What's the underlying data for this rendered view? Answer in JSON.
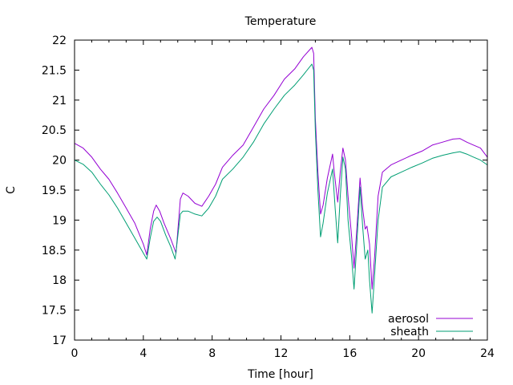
{
  "chart_data": {
    "type": "line",
    "title": "Temperature",
    "xlabel": "Time [hour]",
    "ylabel": "C",
    "xlim": [
      0,
      24
    ],
    "ylim": [
      17,
      22
    ],
    "xticks": [
      0,
      4,
      8,
      12,
      16,
      20,
      24
    ],
    "xtick_labels": [
      "0",
      "4",
      "8",
      "12",
      "16",
      "20",
      "24"
    ],
    "yticks": [
      17,
      17.5,
      18,
      18.5,
      19,
      19.5,
      20,
      20.5,
      21,
      21.5,
      22
    ],
    "ytick_labels": [
      "17",
      "17.5",
      "18",
      "18.5",
      "19",
      "19.5",
      "20",
      "20.5",
      "21",
      "21.5",
      "22"
    ],
    "grid": false,
    "legend_position": "bottom-right",
    "series": [
      {
        "name": "aerosol",
        "color": "#9400d3",
        "points": [
          [
            0,
            20.28
          ],
          [
            0.5,
            20.2
          ],
          [
            1,
            20.05
          ],
          [
            1.5,
            19.85
          ],
          [
            2,
            19.68
          ],
          [
            2.5,
            19.45
          ],
          [
            3,
            19.2
          ],
          [
            3.5,
            18.95
          ],
          [
            4.0,
            18.6
          ],
          [
            4.2,
            18.42
          ],
          [
            4.4,
            18.85
          ],
          [
            4.6,
            19.15
          ],
          [
            4.75,
            19.25
          ],
          [
            4.95,
            19.15
          ],
          [
            5.2,
            18.95
          ],
          [
            5.6,
            18.68
          ],
          [
            5.9,
            18.45
          ],
          [
            6.15,
            19.35
          ],
          [
            6.3,
            19.45
          ],
          [
            6.6,
            19.4
          ],
          [
            7.0,
            19.28
          ],
          [
            7.4,
            19.23
          ],
          [
            7.8,
            19.4
          ],
          [
            8.2,
            19.6
          ],
          [
            8.6,
            19.88
          ],
          [
            9.2,
            20.08
          ],
          [
            9.8,
            20.25
          ],
          [
            10.4,
            20.55
          ],
          [
            11.0,
            20.85
          ],
          [
            11.6,
            21.08
          ],
          [
            12.2,
            21.35
          ],
          [
            12.8,
            21.52
          ],
          [
            13.3,
            21.72
          ],
          [
            13.8,
            21.88
          ],
          [
            13.9,
            21.78
          ],
          [
            14.0,
            20.7
          ],
          [
            14.15,
            19.8
          ],
          [
            14.3,
            19.1
          ],
          [
            14.45,
            19.25
          ],
          [
            14.7,
            19.7
          ],
          [
            15.0,
            20.1
          ],
          [
            15.1,
            19.8
          ],
          [
            15.3,
            19.3
          ],
          [
            15.45,
            19.8
          ],
          [
            15.6,
            20.2
          ],
          [
            15.75,
            20.0
          ],
          [
            15.9,
            19.4
          ],
          [
            16.1,
            18.75
          ],
          [
            16.25,
            18.2
          ],
          [
            16.4,
            18.8
          ],
          [
            16.6,
            19.7
          ],
          [
            16.75,
            19.2
          ],
          [
            16.9,
            18.85
          ],
          [
            17.0,
            18.9
          ],
          [
            17.15,
            18.6
          ],
          [
            17.3,
            17.85
          ],
          [
            17.45,
            18.4
          ],
          [
            17.65,
            19.4
          ],
          [
            17.9,
            19.8
          ],
          [
            18.4,
            19.92
          ],
          [
            19.0,
            20.0
          ],
          [
            19.6,
            20.08
          ],
          [
            20.2,
            20.15
          ],
          [
            20.8,
            20.25
          ],
          [
            21.4,
            20.3
          ],
          [
            22.0,
            20.35
          ],
          [
            22.4,
            20.36
          ],
          [
            22.8,
            20.3
          ],
          [
            23.2,
            20.25
          ],
          [
            23.6,
            20.2
          ],
          [
            24,
            20.05
          ]
        ]
      },
      {
        "name": "sheath",
        "color": "#009e73",
        "points": [
          [
            0,
            20.0
          ],
          [
            0.5,
            19.93
          ],
          [
            1,
            19.8
          ],
          [
            1.5,
            19.6
          ],
          [
            2,
            19.42
          ],
          [
            2.5,
            19.2
          ],
          [
            3,
            18.95
          ],
          [
            3.5,
            18.7
          ],
          [
            4.0,
            18.45
          ],
          [
            4.2,
            18.35
          ],
          [
            4.4,
            18.7
          ],
          [
            4.6,
            18.98
          ],
          [
            4.8,
            19.05
          ],
          [
            5.0,
            18.98
          ],
          [
            5.3,
            18.75
          ],
          [
            5.6,
            18.55
          ],
          [
            5.85,
            18.35
          ],
          [
            6.15,
            19.1
          ],
          [
            6.3,
            19.15
          ],
          [
            6.6,
            19.15
          ],
          [
            7.0,
            19.1
          ],
          [
            7.4,
            19.07
          ],
          [
            7.8,
            19.2
          ],
          [
            8.2,
            19.4
          ],
          [
            8.6,
            19.68
          ],
          [
            9.2,
            19.85
          ],
          [
            9.8,
            20.05
          ],
          [
            10.4,
            20.3
          ],
          [
            11.0,
            20.6
          ],
          [
            11.6,
            20.85
          ],
          [
            12.2,
            21.08
          ],
          [
            12.8,
            21.25
          ],
          [
            13.3,
            21.42
          ],
          [
            13.8,
            21.6
          ],
          [
            13.9,
            21.5
          ],
          [
            14.0,
            20.5
          ],
          [
            14.15,
            19.5
          ],
          [
            14.3,
            18.72
          ],
          [
            14.45,
            18.95
          ],
          [
            14.7,
            19.45
          ],
          [
            15.0,
            19.85
          ],
          [
            15.15,
            19.2
          ],
          [
            15.3,
            18.62
          ],
          [
            15.45,
            19.4
          ],
          [
            15.6,
            20.05
          ],
          [
            15.75,
            19.85
          ],
          [
            15.9,
            19.0
          ],
          [
            16.1,
            18.4
          ],
          [
            16.25,
            17.85
          ],
          [
            16.4,
            18.55
          ],
          [
            16.6,
            19.55
          ],
          [
            16.75,
            18.9
          ],
          [
            16.9,
            18.35
          ],
          [
            17.05,
            18.5
          ],
          [
            17.15,
            18.0
          ],
          [
            17.3,
            17.45
          ],
          [
            17.45,
            18.1
          ],
          [
            17.65,
            19.0
          ],
          [
            17.9,
            19.55
          ],
          [
            18.4,
            19.72
          ],
          [
            19.0,
            19.8
          ],
          [
            19.6,
            19.88
          ],
          [
            20.2,
            19.95
          ],
          [
            20.8,
            20.03
          ],
          [
            21.4,
            20.08
          ],
          [
            22.0,
            20.12
          ],
          [
            22.4,
            20.14
          ],
          [
            22.8,
            20.1
          ],
          [
            23.2,
            20.05
          ],
          [
            23.6,
            20.0
          ],
          [
            24,
            19.92
          ]
        ]
      }
    ]
  }
}
